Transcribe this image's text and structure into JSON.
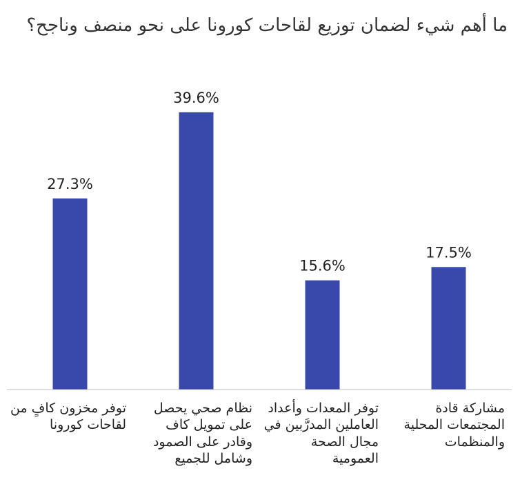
{
  "chart_data": {
    "type": "bar",
    "title": "ما أهم شيء لضمان توزيع لقاحات كورونا على نحو منصف وناجح؟",
    "categories": [
      "توفر مخزون كافٍ من\nلقاحات كورونا",
      "نظام صحي يحصل\nعلى تمويل كاف\nوقادر على الصمود\nوشامل للجميع",
      "توفر المعدات وأعداد\nالعاملين المدرَّبين في\nمجال الصحة العمومية",
      "مشاركة قادة\nالمجتمعات المحلية\nوالمنظمات"
    ],
    "values": [
      27.3,
      39.6,
      15.6,
      17.5
    ],
    "data_labels": [
      "27.3%",
      "39.6%",
      "15.6%",
      "17.5%"
    ],
    "unit": "%",
    "ylim": [
      0,
      45
    ],
    "grid": false,
    "legend": "none",
    "bar_color": "#3949ab",
    "axis_color": "#bdbdbd"
  }
}
